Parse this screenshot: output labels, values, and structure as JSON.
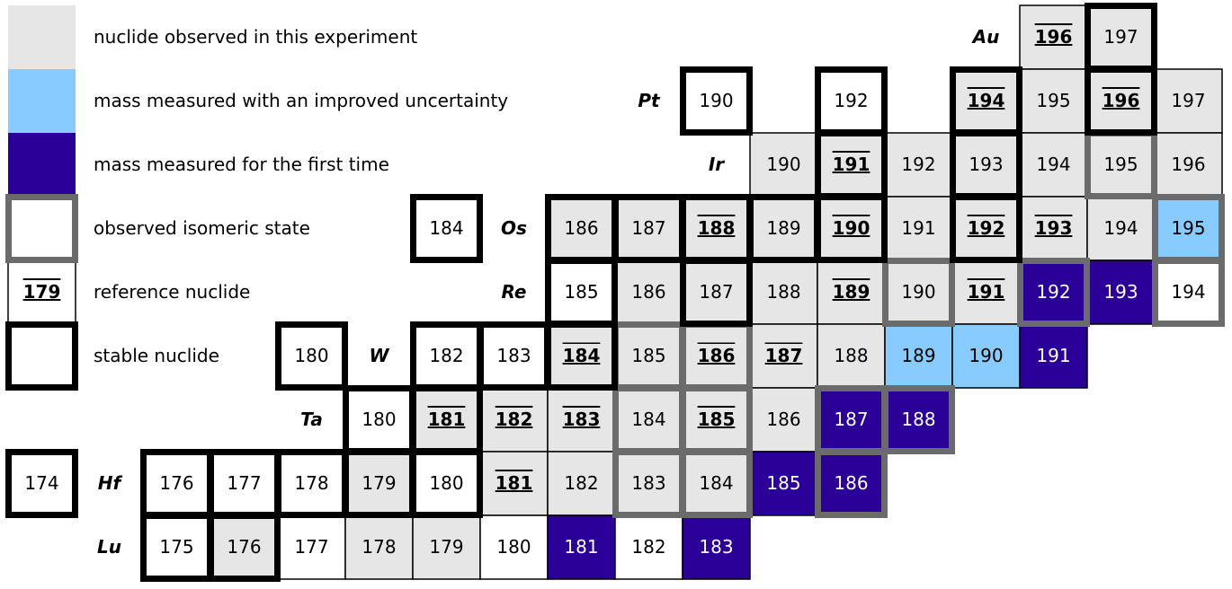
{
  "colors": {
    "observed": "#e6e6e6",
    "improved": "#87cbff",
    "first": "#2b0099",
    "none": "#ffffff"
  },
  "border_colors": {
    "stable": "#000000",
    "isomer": "#6b6b6b"
  },
  "legend": [
    {
      "text": "nuclide observed in this experiment",
      "fill": "observed",
      "border": "none"
    },
    {
      "text": "mass measured with an improved uncertainty",
      "fill": "improved",
      "border": "none"
    },
    {
      "text": "mass measured for the first time",
      "fill": "first",
      "border": "none"
    },
    {
      "text": "observed isomeric state",
      "fill": "none",
      "border": "isomer"
    },
    {
      "text": "reference nuclide",
      "fill": "none",
      "border": "thin",
      "sample": "179",
      "ref": true
    },
    {
      "text": "stable nuclide",
      "fill": "none",
      "border": "stable"
    }
  ],
  "rows": [
    {
      "element": "Au",
      "cells": [
        {
          "n": "196",
          "fill": "observed",
          "border": "thin",
          "ref": true
        },
        {
          "n": "197",
          "fill": "observed",
          "border": "stable"
        }
      ]
    },
    {
      "element": "Pt",
      "cells": [
        {
          "n": "190",
          "fill": "none",
          "border": "stable"
        },
        {
          "n": "192",
          "fill": "none",
          "border": "stable"
        },
        {
          "n": "194",
          "fill": "observed",
          "border": "stable",
          "ref": true
        },
        {
          "n": "195",
          "fill": "observed",
          "border": "thin"
        },
        {
          "n": "196",
          "fill": "observed",
          "border": "stable",
          "ref": true
        },
        {
          "n": "197",
          "fill": "observed",
          "border": "thin"
        }
      ]
    },
    {
      "element": "Ir",
      "cells": [
        {
          "n": "190",
          "fill": "observed",
          "border": "thin"
        },
        {
          "n": "191",
          "fill": "observed",
          "border": "stable",
          "ref": true
        },
        {
          "n": "192",
          "fill": "observed",
          "border": "thin"
        },
        {
          "n": "193",
          "fill": "observed",
          "border": "stable"
        },
        {
          "n": "194",
          "fill": "observed",
          "border": "thin"
        },
        {
          "n": "195",
          "fill": "observed",
          "border": "isomer"
        },
        {
          "n": "196",
          "fill": "observed",
          "border": "thin"
        }
      ]
    },
    {
      "element": "Os",
      "cells": [
        {
          "n": "184",
          "fill": "none",
          "border": "stable"
        },
        {
          "n": "186",
          "fill": "observed",
          "border": "stable"
        },
        {
          "n": "187",
          "fill": "observed",
          "border": "stable"
        },
        {
          "n": "188",
          "fill": "observed",
          "border": "stable",
          "ref": true
        },
        {
          "n": "189",
          "fill": "observed",
          "border": "stable"
        },
        {
          "n": "190",
          "fill": "observed",
          "border": "stable",
          "ref": true
        },
        {
          "n": "191",
          "fill": "observed",
          "border": "thin"
        },
        {
          "n": "192",
          "fill": "observed",
          "border": "stable",
          "ref": true
        },
        {
          "n": "193",
          "fill": "observed",
          "border": "thin",
          "ref": true
        },
        {
          "n": "194",
          "fill": "observed",
          "border": "thin"
        },
        {
          "n": "195",
          "fill": "improved",
          "border": "isomer"
        }
      ]
    },
    {
      "element": "Re",
      "cells": [
        {
          "n": "185",
          "fill": "none",
          "border": "stable"
        },
        {
          "n": "186",
          "fill": "observed",
          "border": "thin"
        },
        {
          "n": "187",
          "fill": "observed",
          "border": "stable"
        },
        {
          "n": "188",
          "fill": "observed",
          "border": "thin"
        },
        {
          "n": "189",
          "fill": "observed",
          "border": "thin",
          "ref": true
        },
        {
          "n": "190",
          "fill": "observed",
          "border": "isomer"
        },
        {
          "n": "191",
          "fill": "observed",
          "border": "thin",
          "ref": true
        },
        {
          "n": "192",
          "fill": "first",
          "border": "isomer"
        },
        {
          "n": "193",
          "fill": "first",
          "border": "thin"
        },
        {
          "n": "194",
          "fill": "none",
          "border": "isomer"
        }
      ]
    },
    {
      "element": "W",
      "cells": [
        {
          "n": "180",
          "fill": "none",
          "border": "stable"
        },
        {
          "n": "182",
          "fill": "none",
          "border": "stable"
        },
        {
          "n": "183",
          "fill": "none",
          "border": "stable"
        },
        {
          "n": "184",
          "fill": "observed",
          "border": "stable",
          "ref": true
        },
        {
          "n": "185",
          "fill": "observed",
          "border": "isomer"
        },
        {
          "n": "186",
          "fill": "observed",
          "border": "isomer",
          "ref": true
        },
        {
          "n": "187",
          "fill": "observed",
          "border": "thin",
          "ref": true
        },
        {
          "n": "188",
          "fill": "observed",
          "border": "thin"
        },
        {
          "n": "189",
          "fill": "improved",
          "border": "thin"
        },
        {
          "n": "190",
          "fill": "improved",
          "border": "thin"
        },
        {
          "n": "191",
          "fill": "first",
          "border": "thin"
        }
      ]
    },
    {
      "element": "Ta",
      "cells": [
        {
          "n": "180",
          "fill": "none",
          "border": "stable"
        },
        {
          "n": "181",
          "fill": "observed",
          "border": "stable",
          "ref": true
        },
        {
          "n": "182",
          "fill": "observed",
          "border": "thin",
          "ref": true
        },
        {
          "n": "183",
          "fill": "observed",
          "border": "thin",
          "ref": true
        },
        {
          "n": "184",
          "fill": "observed",
          "border": "isomer"
        },
        {
          "n": "185",
          "fill": "observed",
          "border": "isomer",
          "ref": true
        },
        {
          "n": "186",
          "fill": "observed",
          "border": "thin"
        },
        {
          "n": "187",
          "fill": "first",
          "border": "isomer"
        },
        {
          "n": "188",
          "fill": "first",
          "border": "isomer"
        }
      ]
    },
    {
      "element": "Hf",
      "cells": [
        {
          "n": "174",
          "fill": "none",
          "border": "stable"
        },
        {
          "n": "176",
          "fill": "none",
          "border": "stable"
        },
        {
          "n": "177",
          "fill": "none",
          "border": "stable"
        },
        {
          "n": "178",
          "fill": "none",
          "border": "stable"
        },
        {
          "n": "179",
          "fill": "observed",
          "border": "stable"
        },
        {
          "n": "180",
          "fill": "none",
          "border": "stable"
        },
        {
          "n": "181",
          "fill": "observed",
          "border": "thin",
          "ref": true
        },
        {
          "n": "182",
          "fill": "observed",
          "border": "thin"
        },
        {
          "n": "183",
          "fill": "observed",
          "border": "isomer"
        },
        {
          "n": "184",
          "fill": "observed",
          "border": "isomer"
        },
        {
          "n": "185",
          "fill": "first",
          "border": "thin"
        },
        {
          "n": "186",
          "fill": "first",
          "border": "isomer"
        }
      ]
    },
    {
      "element": "Lu",
      "cells": [
        {
          "n": "175",
          "fill": "none",
          "border": "stable"
        },
        {
          "n": "176",
          "fill": "observed",
          "border": "stable"
        },
        {
          "n": "177",
          "fill": "none",
          "border": "thin"
        },
        {
          "n": "178",
          "fill": "observed",
          "border": "thin"
        },
        {
          "n": "179",
          "fill": "observed",
          "border": "thin"
        },
        {
          "n": "180",
          "fill": "none",
          "border": "thin"
        },
        {
          "n": "181",
          "fill": "first",
          "border": "thin"
        },
        {
          "n": "182",
          "fill": "none",
          "border": "thin"
        },
        {
          "n": "183",
          "fill": "first",
          "border": "thin"
        }
      ]
    }
  ]
}
